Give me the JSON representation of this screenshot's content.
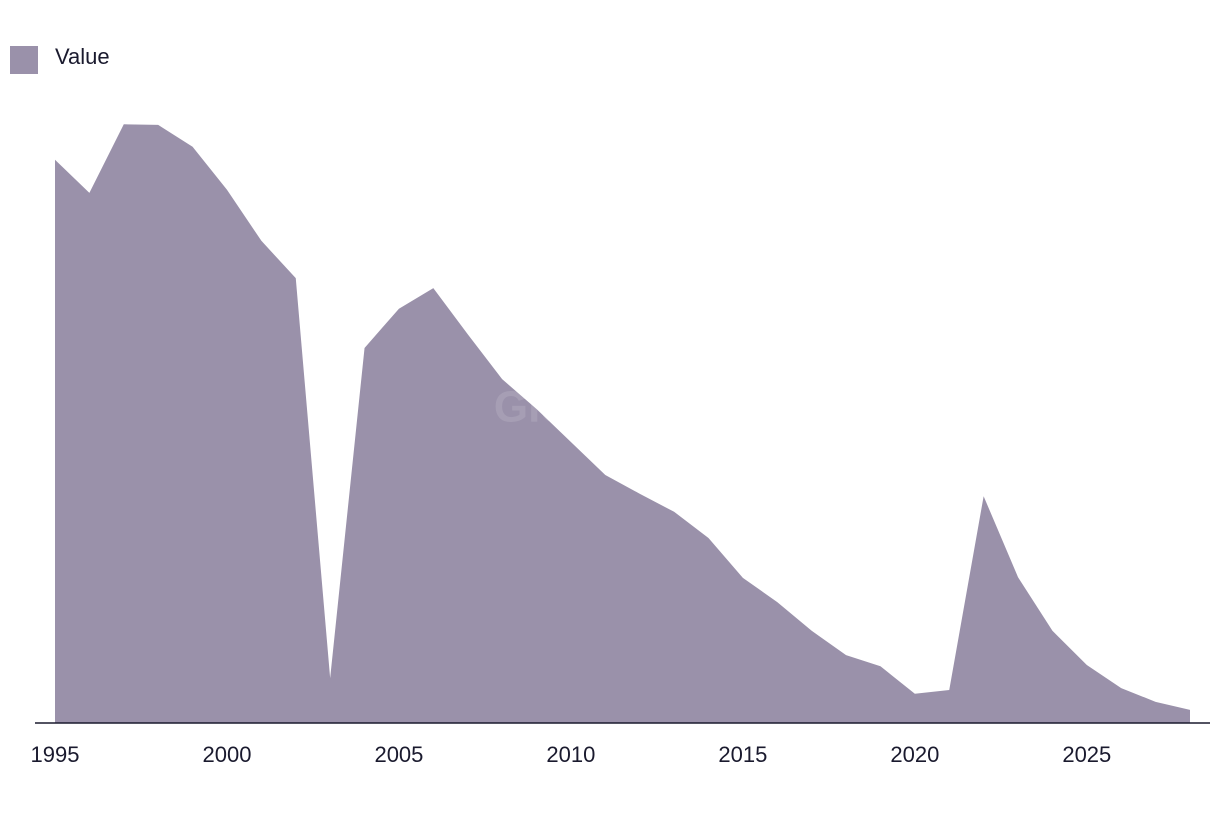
{
  "chart_data": {
    "type": "area",
    "watermark": "GlobalData",
    "x": [
      1995,
      1996,
      1997,
      1998,
      1999,
      2000,
      2001,
      2002,
      2003,
      2004,
      2005,
      2006,
      2007,
      2008,
      2009,
      2010,
      2011,
      2012,
      2013,
      2014,
      2015,
      2016,
      2017,
      2018,
      2019,
      2020,
      2021,
      2022,
      2023,
      2024,
      2025,
      2026,
      2027,
      2028
    ],
    "series": [
      {
        "name": "Value",
        "color": "#9a91aa",
        "values": [
          90.4,
          85.1,
          96.1,
          96.0,
          92.5,
          85.6,
          77.4,
          71.4,
          7.2,
          60.2,
          66.5,
          69.8,
          62.4,
          55.2,
          50.4,
          45.1,
          39.8,
          36.8,
          33.9,
          29.7,
          23.3,
          19.4,
          14.8,
          10.9,
          9.1,
          4.7,
          5.3,
          36.4,
          23.4,
          14.8,
          9.3,
          5.6,
          3.4,
          2.1
        ]
      }
    ],
    "xlim": [
      1995,
      2028
    ],
    "xticks": [
      1995,
      2000,
      2005,
      2010,
      2015,
      2020,
      2025
    ],
    "ylim": [
      0,
      100
    ],
    "legend": "top-left"
  }
}
